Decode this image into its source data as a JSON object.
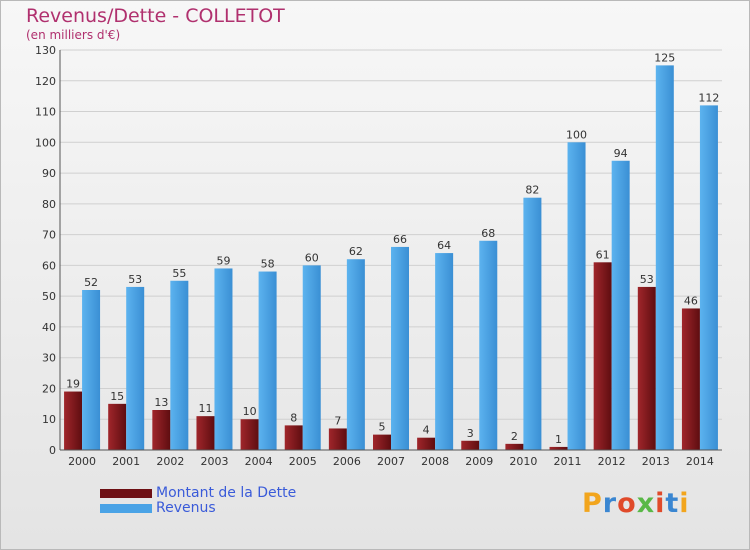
{
  "chart_data": {
    "type": "bar",
    "title": "Revenus/Dette - COLLETOT",
    "subtitle": "(en milliers d'€)",
    "categories": [
      "2000",
      "2001",
      "2002",
      "2003",
      "2004",
      "2005",
      "2006",
      "2007",
      "2008",
      "2009",
      "2010",
      "2011",
      "2012",
      "2013",
      "2014"
    ],
    "series": [
      {
        "name": "Montant de la Dette",
        "color": "#7a1418",
        "values": [
          19,
          15,
          13,
          11,
          10,
          8,
          7,
          5,
          4,
          3,
          2,
          1,
          61,
          53,
          46
        ]
      },
      {
        "name": "Revenus",
        "color": "#4aa3e6",
        "values": [
          52,
          53,
          55,
          59,
          58,
          60,
          62,
          66,
          64,
          68,
          82,
          100,
          94,
          125,
          112
        ]
      }
    ],
    "ylim": [
      0,
      130
    ],
    "yticks": [
      0,
      10,
      20,
      30,
      40,
      50,
      60,
      70,
      80,
      90,
      100,
      110,
      120,
      130
    ],
    "grid": true,
    "legend": "bottom-left"
  },
  "logo": {
    "text": "Proxiti"
  }
}
